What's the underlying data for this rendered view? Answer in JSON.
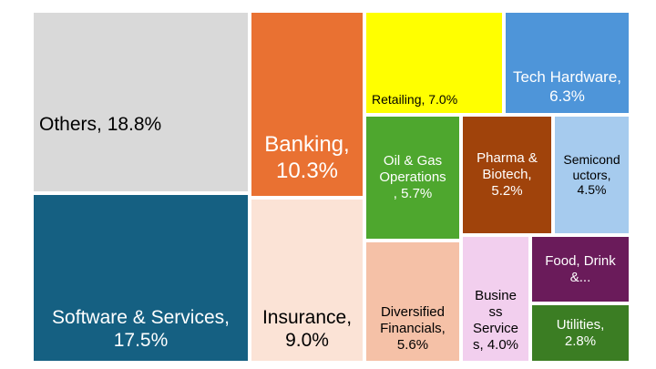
{
  "chart_data": {
    "type": "treemap",
    "title": "",
    "unit": "%",
    "items": [
      {
        "name": "Others",
        "value": 18.8,
        "label": "Others, 18.8%",
        "color": "#d9d9d9",
        "text_color": "#000000"
      },
      {
        "name": "Software & Services",
        "value": 17.5,
        "label": "Software & Services,\n17.5%",
        "color": "#156082",
        "text_color": "#ffffff"
      },
      {
        "name": "Banking",
        "value": 10.3,
        "label": "Banking,\n10.3%",
        "color": "#e97132",
        "text_color": "#ffffff"
      },
      {
        "name": "Insurance",
        "value": 9.0,
        "label": "Insurance,\n9.0%",
        "color": "#fbe3d6",
        "text_color": "#000000"
      },
      {
        "name": "Retailing",
        "value": 7.0,
        "label": "Retailing, 7.0%",
        "color": "#ffff00",
        "text_color": "#000000"
      },
      {
        "name": "Tech Hardware",
        "value": 6.3,
        "label": "Tech Hardware,\n6.3%",
        "color": "#4e95d9",
        "text_color": "#ffffff"
      },
      {
        "name": "Oil & Gas Operations",
        "value": 5.7,
        "label": "Oil & Gas\nOperations\n, 5.7%",
        "color": "#4ea72e",
        "text_color": "#ffffff"
      },
      {
        "name": "Pharma & Biotech",
        "value": 5.2,
        "label": "Pharma &\nBiotech,\n5.2%",
        "color": "#a0430b",
        "text_color": "#ffffff"
      },
      {
        "name": "Semiconductors",
        "value": 4.5,
        "label": "Semicond\nuctors,\n4.5%",
        "color": "#a6cbee",
        "text_color": "#000000"
      },
      {
        "name": "Diversified Financials",
        "value": 5.6,
        "label": "Diversified\nFinancials,\n5.6%",
        "color": "#f5c1a7",
        "text_color": "#000000"
      },
      {
        "name": "Business Services",
        "value": 4.0,
        "label": "Busine\nss\nService\ns, 4.0%",
        "color": "#f2cfee",
        "text_color": "#000000"
      },
      {
        "name": "Food, Drink &...",
        "value": null,
        "label": "Food, Drink\n&...",
        "color": "#6a1b5a",
        "text_color": "#ffffff"
      },
      {
        "name": "Utilities",
        "value": 2.8,
        "label": "Utilities,\n2.8%",
        "color": "#3b7d23",
        "text_color": "#ffffff"
      }
    ]
  }
}
